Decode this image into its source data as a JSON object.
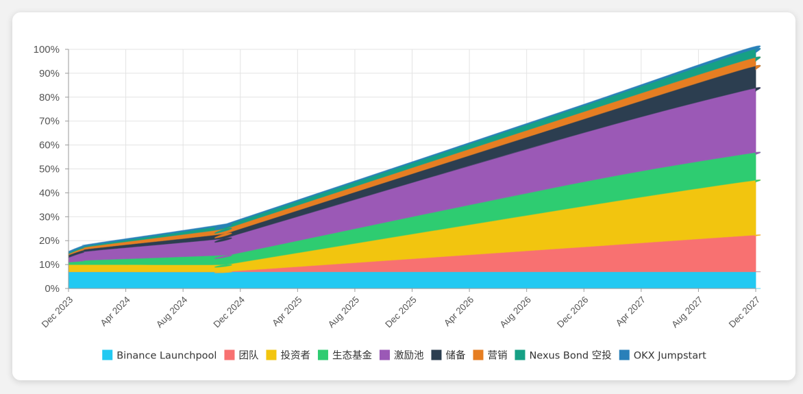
{
  "chart_data": {
    "type": "area",
    "stacked": true,
    "title": "",
    "xlabel": "",
    "ylabel": "",
    "ylim": [
      0,
      100
    ],
    "grid": true,
    "legend_position": "bottom",
    "y_ticks": [
      "0%",
      "10%",
      "20%",
      "30%",
      "40%",
      "50%",
      "60%",
      "70%",
      "80%",
      "90%",
      "100%"
    ],
    "x_ticks": [
      "Dec 2023",
      "Apr 2024",
      "Aug 2024",
      "Dec 2024",
      "Apr 2025",
      "Aug 2025",
      "Dec 2025",
      "Apr 2026",
      "Aug 2026",
      "Dec 2026",
      "Apr 2027",
      "Aug 2027",
      "Dec 2027"
    ],
    "x": [
      "Dec 2023",
      "Jan 2024",
      "Feb 2024",
      "Nov 2024",
      "Dec 2024",
      "Nov 2026",
      "Nov 2027",
      "Dec 2027"
    ],
    "series": [
      {
        "name": "Binance Launchpool",
        "color": "#22c9f2",
        "values": [
          7,
          7,
          7,
          7,
          7,
          7,
          7,
          7
        ]
      },
      {
        "name": "团队",
        "color": "#f87171",
        "values": [
          0,
          0,
          0,
          0,
          0.5,
          10,
          15,
          15
        ]
      },
      {
        "name": "投资者",
        "color": "#f2c50f",
        "values": [
          3,
          3,
          3,
          3,
          3.5,
          16.5,
          22.5,
          22.5
        ]
      },
      {
        "name": "生态基金",
        "color": "#2ecc71",
        "values": [
          1,
          1.5,
          2,
          4,
          4,
          10,
          11.5,
          11.5
        ]
      },
      {
        "name": "激励池",
        "color": "#9b59b6",
        "values": [
          2,
          3.5,
          4,
          7,
          8,
          20,
          26.5,
          26.5
        ]
      },
      {
        "name": "储备",
        "color": "#2c3e50",
        "values": [
          1,
          1,
          1,
          2,
          2,
          5.5,
          9,
          9
        ]
      },
      {
        "name": "营销",
        "color": "#e67e22",
        "values": [
          0.5,
          0.8,
          1,
          2,
          2,
          3,
          3.5,
          3.5
        ]
      },
      {
        "name": "Nexus Bond 空投",
        "color": "#16a085",
        "values": [
          0.5,
          0.5,
          0.5,
          1.5,
          1.5,
          2.5,
          3.5,
          3.5
        ]
      },
      {
        "name": "OKX Jumpstart",
        "color": "#2980b9",
        "values": [
          0.5,
          0.5,
          0.5,
          0.5,
          0.5,
          0.5,
          1,
          1
        ]
      }
    ]
  }
}
